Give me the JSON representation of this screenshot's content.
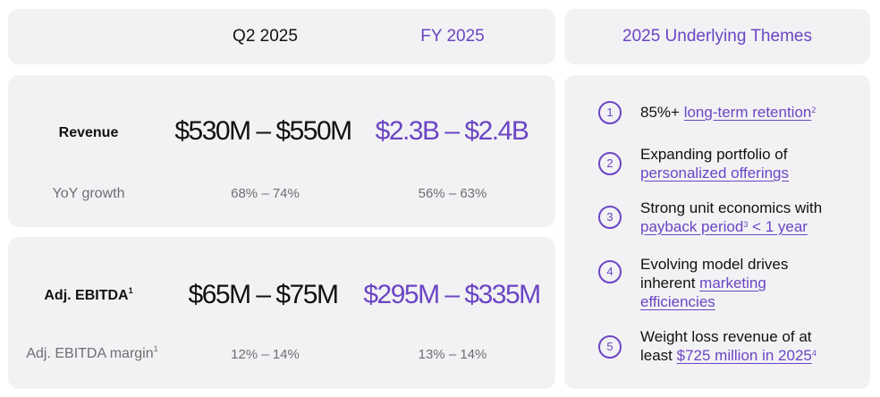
{
  "header": {
    "col_q2": "Q2 2025",
    "col_fy": "FY 2025",
    "themes_title": "2025 Underlying Themes"
  },
  "revenue": {
    "label": "Revenue",
    "q2": "$530M – $550M",
    "fy": "$2.3B – $2.4B",
    "growth_label": "YoY growth",
    "growth_q2": "68% – 74%",
    "growth_fy": "56% – 63%"
  },
  "ebitda": {
    "label": "Adj. EBITDA",
    "label_sup": "1",
    "q2": "$65M – $75M",
    "fy": "$295M – $335M",
    "margin_label": "Adj. EBITDA margin",
    "margin_sup": "1",
    "margin_q2": "12% – 14%",
    "margin_fy": "13% – 14%"
  },
  "themes": [
    {
      "num": "1",
      "plain": "85%+ ",
      "link": "long-term retention",
      "sup": "2"
    },
    {
      "num": "2",
      "plain": "Expanding portfolio of",
      "link": "personalized offerings"
    },
    {
      "num": "3",
      "plain": "Strong unit economics with",
      "link_a": "payback period",
      "sup": "3",
      "link_b": " < 1 year"
    },
    {
      "num": "4",
      "plain": "Evolving model drives inherent ",
      "link": "marketing efficiencies"
    },
    {
      "num": "5",
      "plain": "Weight loss revenue of at least ",
      "link": "$725 million in 2025",
      "sup": "4"
    }
  ],
  "colors": {
    "accent": "#6b45c4",
    "panel": "#f2f2f4",
    "muted": "#6f6f73"
  }
}
